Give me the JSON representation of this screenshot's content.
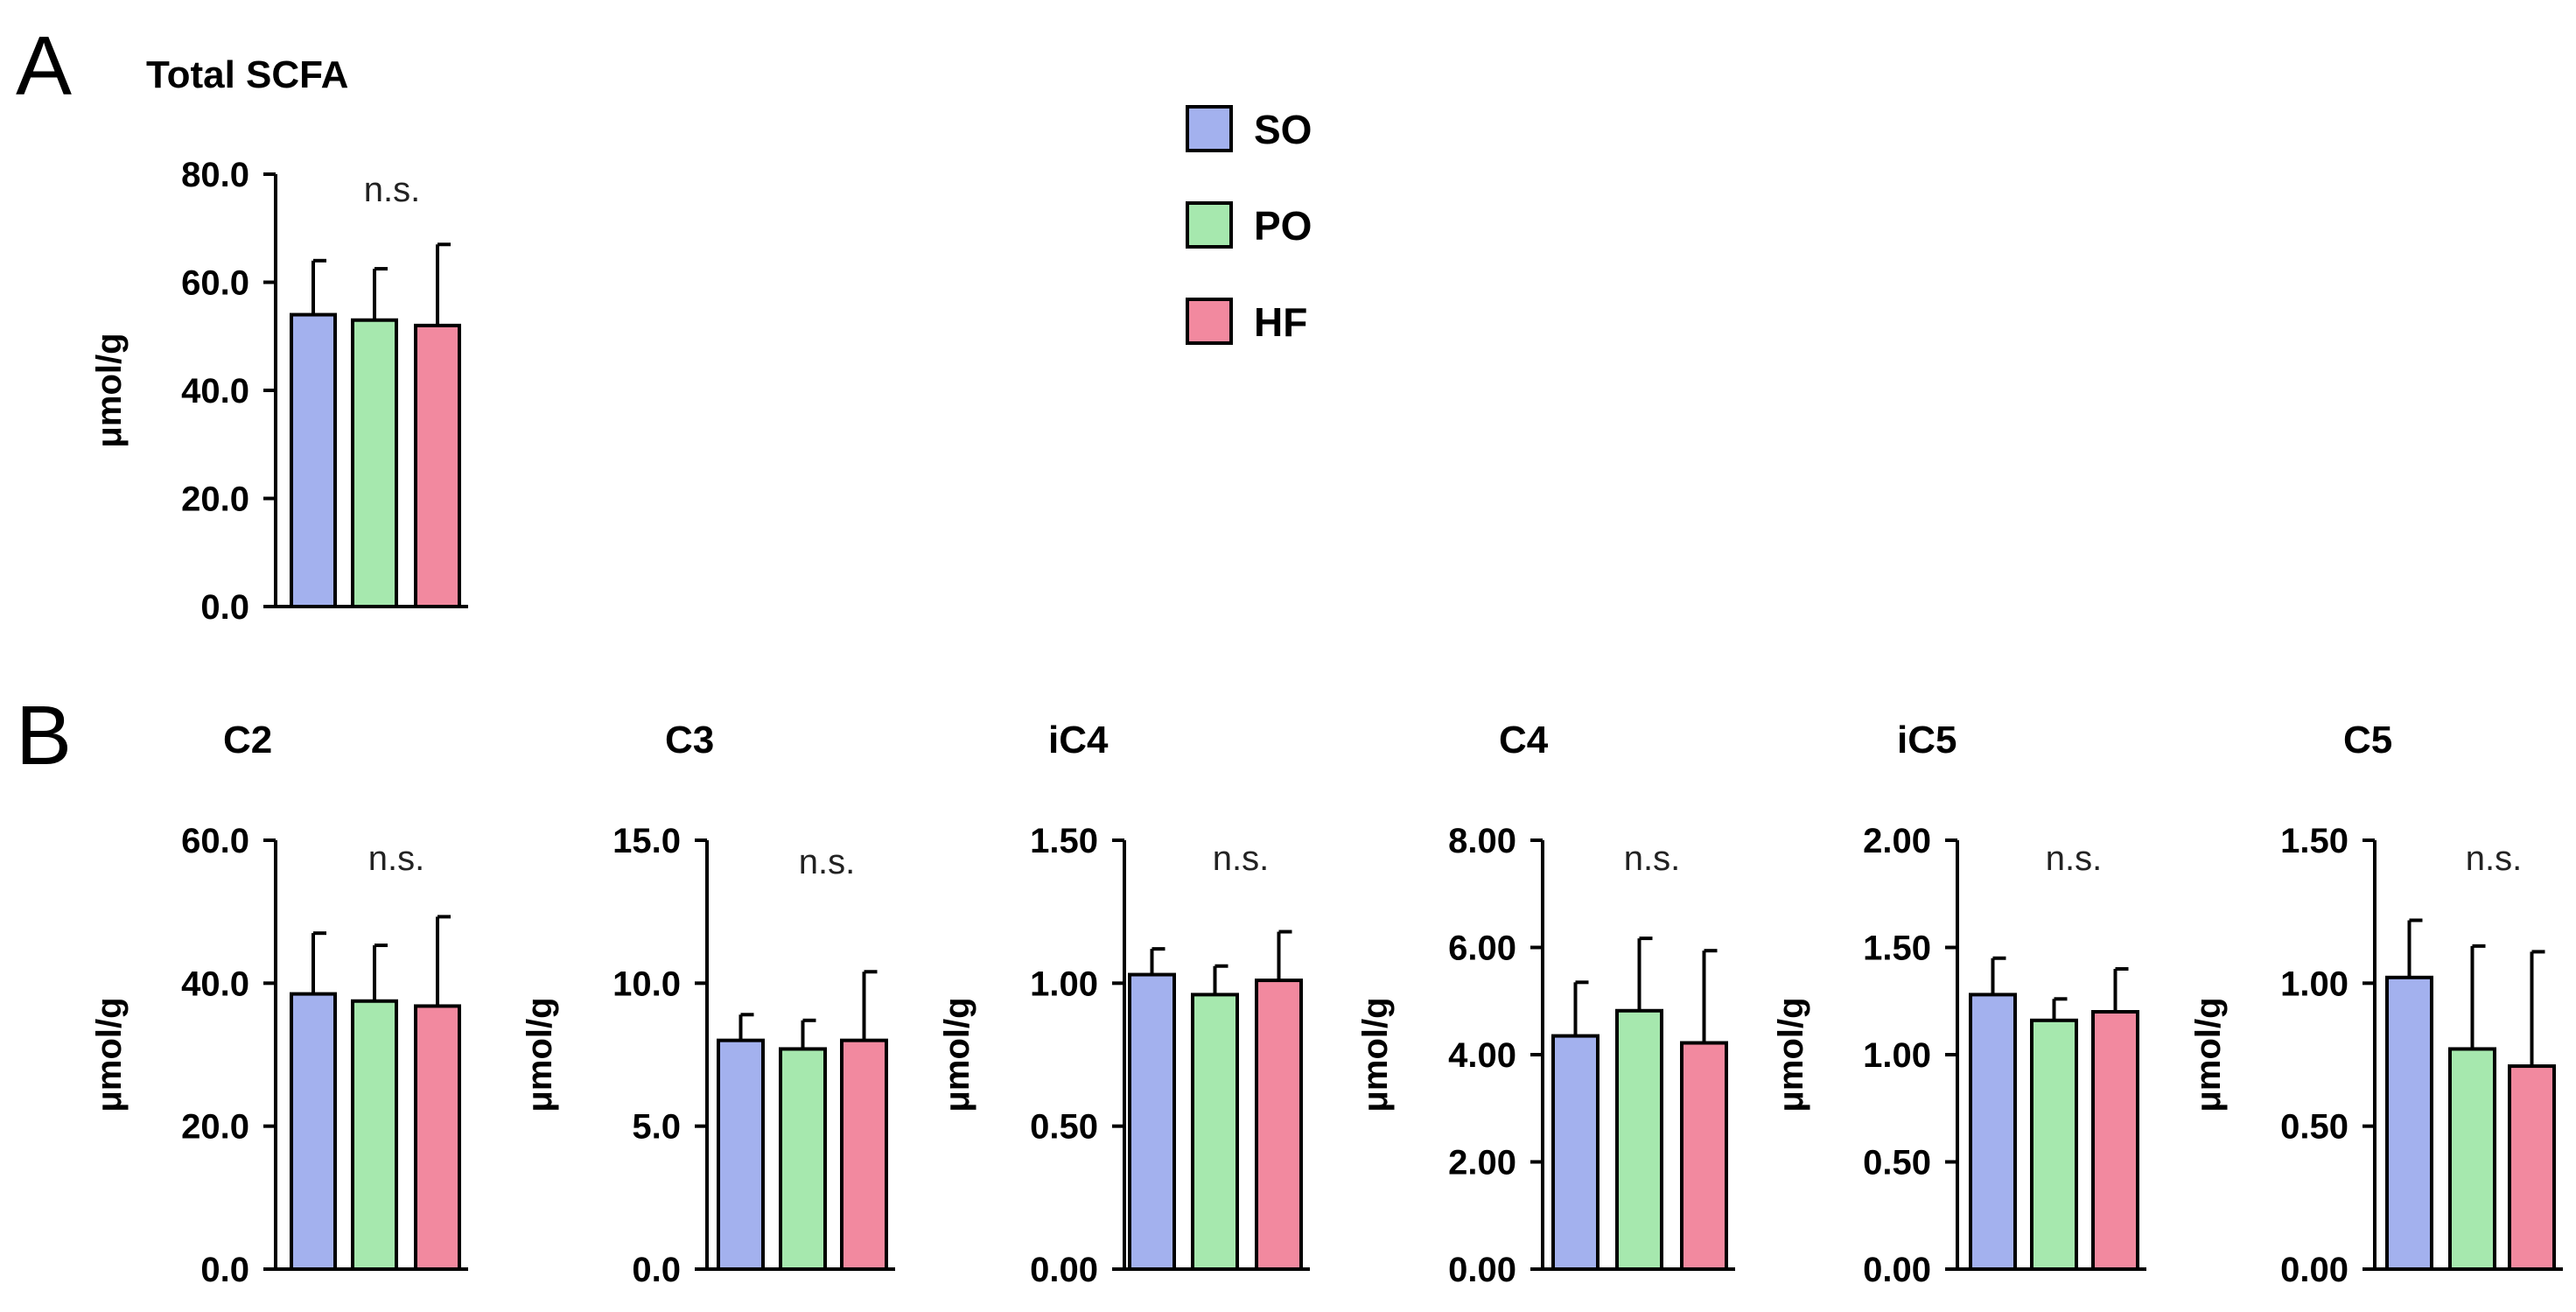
{
  "panel_letters": {
    "a": "A",
    "b": "B"
  },
  "legend": [
    {
      "label": "SO",
      "color": "#A3B1EE"
    },
    {
      "label": "PO",
      "color": "#A6E8AE"
    },
    {
      "label": "HF",
      "color": "#F2899F"
    }
  ],
  "chart_data": [
    {
      "type": "bar",
      "panel": "A",
      "title": "Total SCFA",
      "ylabel": "μmol/g",
      "ylim": [
        0,
        80
      ],
      "yticks": [
        "0.0",
        "20.0",
        "40.0",
        "60.0",
        "80.0"
      ],
      "categories": [
        "SO",
        "PO",
        "HF"
      ],
      "values": [
        54.0,
        53.0,
        52.0
      ],
      "errors": [
        10.0,
        9.5,
        15.0
      ],
      "annotation": "n.s."
    },
    {
      "type": "bar",
      "panel": "B",
      "title": "C2",
      "ylabel": "μmol/g",
      "ylim": [
        0,
        60
      ],
      "yticks": [
        "0.0",
        "20.0",
        "40.0",
        "60.0"
      ],
      "categories": [
        "SO",
        "PO",
        "HF"
      ],
      "values": [
        38.5,
        37.5,
        36.8
      ],
      "errors": [
        8.5,
        7.8,
        12.5
      ],
      "annotation": "n.s."
    },
    {
      "type": "bar",
      "panel": "B",
      "title": "C3",
      "ylabel": "μmol/g",
      "ylim": [
        0,
        15
      ],
      "yticks": [
        "0.0",
        "5.0",
        "10.0",
        "15.0"
      ],
      "categories": [
        "SO",
        "PO",
        "HF"
      ],
      "values": [
        8.0,
        7.7,
        8.0
      ],
      "errors": [
        0.9,
        1.0,
        2.4
      ],
      "annotation": "n.s."
    },
    {
      "type": "bar",
      "panel": "B",
      "title": "iC4",
      "ylabel": "μmol/g",
      "ylim": [
        0,
        1.5
      ],
      "yticks": [
        "0.00",
        "0.50",
        "1.00",
        "1.50"
      ],
      "categories": [
        "SO",
        "PO",
        "HF"
      ],
      "values": [
        1.03,
        0.96,
        1.01
      ],
      "errors": [
        0.09,
        0.1,
        0.17
      ],
      "annotation": "n.s."
    },
    {
      "type": "bar",
      "panel": "B",
      "title": "C4",
      "ylabel": "μmol/g",
      "ylim": [
        0,
        8
      ],
      "yticks": [
        "0.00",
        "2.00",
        "4.00",
        "6.00",
        "8.00"
      ],
      "categories": [
        "SO",
        "PO",
        "HF"
      ],
      "values": [
        4.35,
        4.82,
        4.22
      ],
      "errors": [
        1.0,
        1.35,
        1.72
      ],
      "annotation": "n.s."
    },
    {
      "type": "bar",
      "panel": "B",
      "title": "iC5",
      "ylabel": "μmol/g",
      "ylim": [
        0,
        2
      ],
      "yticks": [
        "0.00",
        "0.50",
        "1.00",
        "1.50",
        "2.00"
      ],
      "categories": [
        "SO",
        "PO",
        "HF"
      ],
      "values": [
        1.28,
        1.16,
        1.2
      ],
      "errors": [
        0.17,
        0.1,
        0.2
      ],
      "annotation": "n.s."
    },
    {
      "type": "bar",
      "panel": "B",
      "title": "C5",
      "ylabel": "μmol/g",
      "ylim": [
        0,
        1.5
      ],
      "yticks": [
        "0.00",
        "0.50",
        "1.00",
        "1.50"
      ],
      "categories": [
        "SO",
        "PO",
        "HF"
      ],
      "values": [
        1.02,
        0.77,
        0.71
      ],
      "errors": [
        0.2,
        0.36,
        0.4
      ],
      "annotation": "n.s."
    }
  ]
}
